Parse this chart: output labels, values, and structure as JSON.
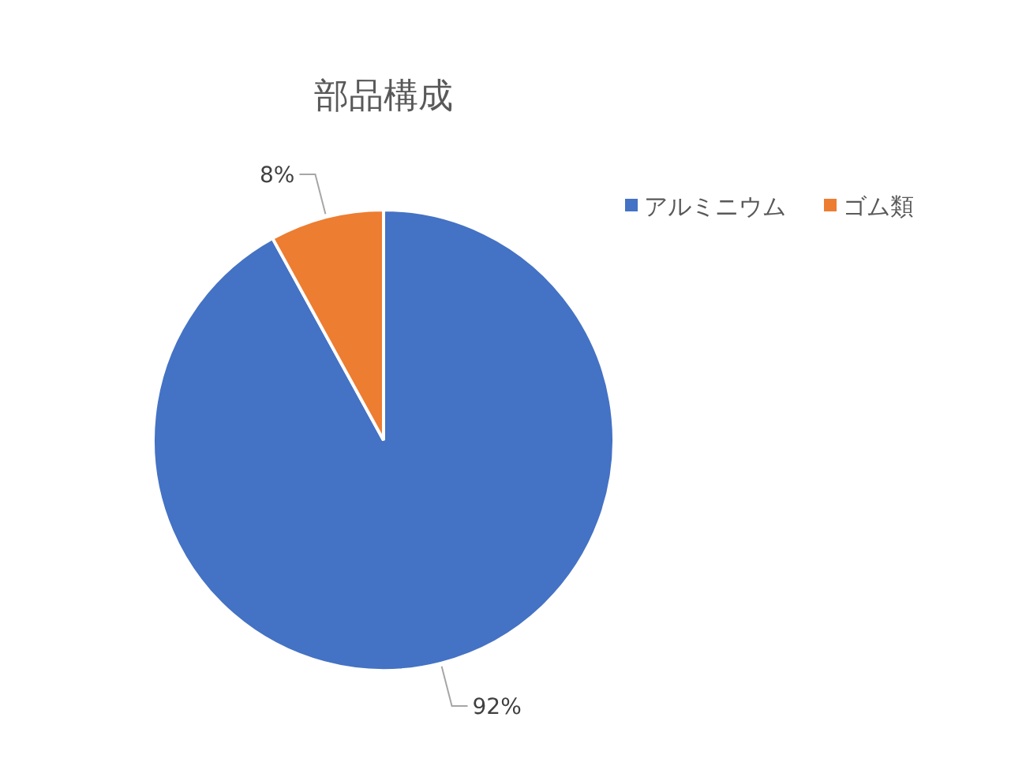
{
  "chart_data": {
    "type": "pie",
    "title": "部品構成",
    "categories": [
      "アルミニウム",
      "ゴム類"
    ],
    "values": [
      92,
      8
    ],
    "colors": [
      "#4472c4",
      "#ed7d31"
    ],
    "value_labels": [
      "92%",
      "8%"
    ],
    "legend": "top right"
  }
}
